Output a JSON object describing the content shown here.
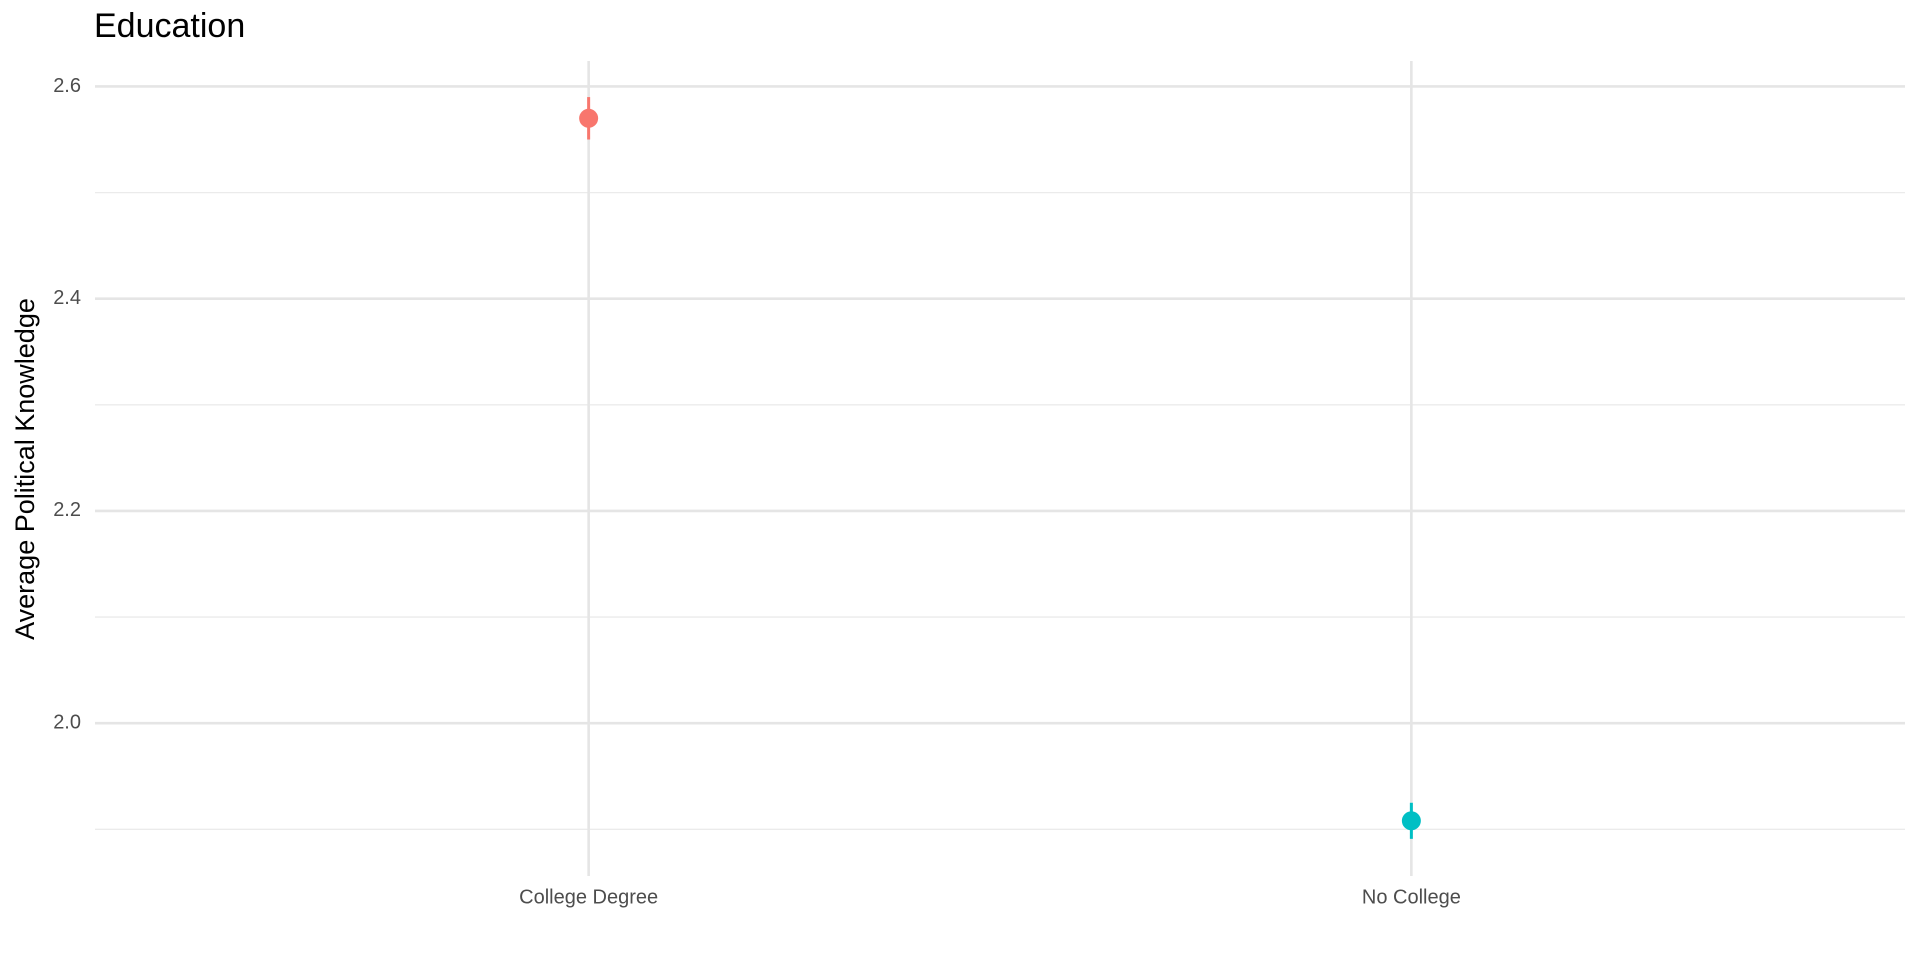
{
  "chart_data": {
    "type": "errorpoint",
    "title": "Education",
    "y_label": "Average Political Knowledge",
    "categories": [
      "College Degree",
      "No College"
    ],
    "values": [
      2.57,
      1.908
    ],
    "errors": [
      0.02,
      0.017
    ],
    "colors": [
      "#F8766D",
      "#00BFC4"
    ],
    "ylim": [
      1.856,
      2.624
    ],
    "yticks": [
      {
        "value": 2.0,
        "label": "2.0"
      },
      2.2,
      2.4,
      2.6
    ],
    "minor_yticks": [
      1.9,
      2.1,
      2.3,
      2.5
    ],
    "grid": true
  }
}
